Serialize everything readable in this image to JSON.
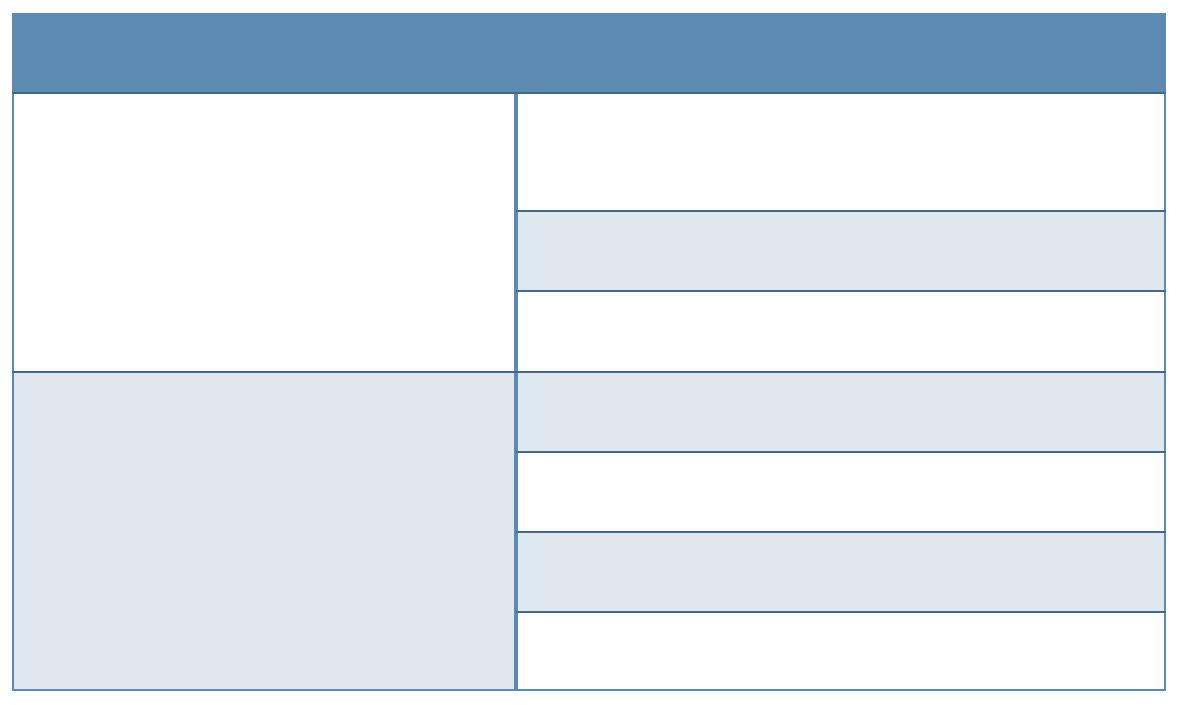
{
  "table": {
    "header_text": "",
    "groups": [
      {
        "label": "",
        "shade": "white",
        "rows": [
          {
            "text": "",
            "shade": "white"
          },
          {
            "text": "",
            "shade": "light"
          },
          {
            "text": "",
            "shade": "white"
          }
        ]
      },
      {
        "label": "",
        "shade": "light",
        "rows": [
          {
            "text": "",
            "shade": "light"
          },
          {
            "text": "",
            "shade": "white"
          },
          {
            "text": "",
            "shade": "light"
          },
          {
            "text": "",
            "shade": "white"
          }
        ]
      }
    ]
  },
  "colors": {
    "header": "#5d8ab1",
    "light_row": "#dfe7ef",
    "white_row": "#ffffff",
    "vertical_border": "#5d8ab1",
    "horizontal_border": "#44688a"
  }
}
